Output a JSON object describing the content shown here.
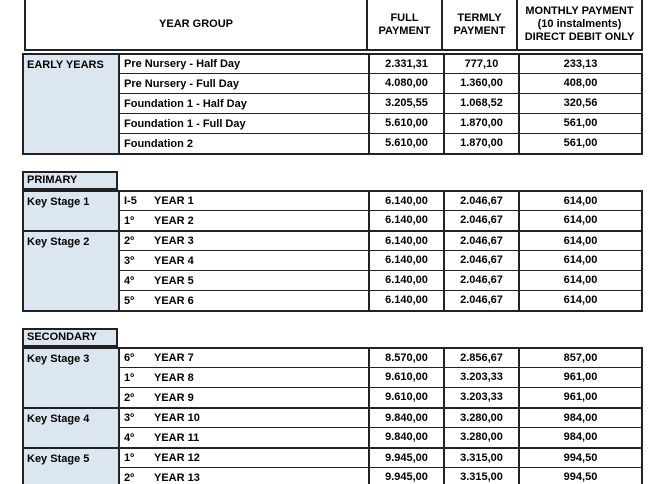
{
  "colors": {
    "category_fill": "#dce6f1",
    "border": "#222222",
    "background": "#ffffff"
  },
  "table": {
    "header": {
      "year_group": "YEAR GROUP",
      "full": "FULL\nPAYMENT",
      "termly": "TERMLY\nPAYMENT",
      "monthly": "MONTHLY PAYMENT\n(10 instalments)\nDIRECT DEBIT ONLY"
    },
    "sections": [
      {
        "title": "",
        "groups": [
          {
            "category": "EARLY YEARS",
            "rows": [
              {
                "prefix": "",
                "label": "Pre Nursery - Half Day",
                "full": "2.331,31",
                "termly": "777,10",
                "monthly": "233,13"
              },
              {
                "prefix": "",
                "label": "Pre Nursery - Full Day",
                "full": "4.080,00",
                "termly": "1.360,00",
                "monthly": "408,00"
              },
              {
                "prefix": "",
                "label": "Foundation 1 - Half Day",
                "full": "3.205,55",
                "termly": "1.068,52",
                "monthly": "320,56"
              },
              {
                "prefix": "",
                "label": "Foundation 1 - Full Day",
                "full": "5.610,00",
                "termly": "1.870,00",
                "monthly": "561,00"
              },
              {
                "prefix": "",
                "label": "Foundation 2",
                "full": "5.610,00",
                "termly": "1.870,00",
                "monthly": "561,00"
              }
            ]
          }
        ]
      },
      {
        "title": "PRIMARY",
        "groups": [
          {
            "category": "Key Stage 1",
            "rows": [
              {
                "prefix": "I-5",
                "label": "YEAR 1",
                "full": "6.140,00",
                "termly": "2.046,67",
                "monthly": "614,00"
              },
              {
                "prefix": "1º",
                "label": "YEAR 2",
                "full": "6.140,00",
                "termly": "2.046,67",
                "monthly": "614,00"
              }
            ]
          },
          {
            "category": "Key Stage 2",
            "rows": [
              {
                "prefix": "2º",
                "label": "YEAR 3",
                "full": "6.140,00",
                "termly": "2.046,67",
                "monthly": "614,00"
              },
              {
                "prefix": "3º",
                "label": "YEAR 4",
                "full": "6.140,00",
                "termly": "2.046,67",
                "monthly": "614,00"
              },
              {
                "prefix": "4º",
                "label": "YEAR 5",
                "full": "6.140,00",
                "termly": "2.046,67",
                "monthly": "614,00"
              },
              {
                "prefix": "5º",
                "label": "YEAR 6",
                "full": "6.140,00",
                "termly": "2.046,67",
                "monthly": "614,00"
              }
            ]
          }
        ]
      },
      {
        "title": "SECONDARY",
        "groups": [
          {
            "category": "Key Stage 3",
            "rows": [
              {
                "prefix": "6º",
                "label": "YEAR 7",
                "full": "8.570,00",
                "termly": "2.856,67",
                "monthly": "857,00"
              },
              {
                "prefix": "1º",
                "label": "YEAR 8",
                "full": "9.610,00",
                "termly": "3.203,33",
                "monthly": "961,00"
              },
              {
                "prefix": "2º",
                "label": "YEAR 9",
                "full": "9.610,00",
                "termly": "3.203,33",
                "monthly": "961,00"
              }
            ]
          },
          {
            "category": "Key Stage 4",
            "rows": [
              {
                "prefix": "3º",
                "label": "YEAR 10",
                "full": "9.840,00",
                "termly": "3.280,00",
                "monthly": "984,00"
              },
              {
                "prefix": "4º",
                "label": "YEAR 11",
                "full": "9.840,00",
                "termly": "3.280,00",
                "monthly": "984,00"
              }
            ]
          },
          {
            "category": "Key Stage 5",
            "rows": [
              {
                "prefix": "1º",
                "label": "YEAR 12",
                "full": "9.945,00",
                "termly": "3.315,00",
                "monthly": "994,50"
              },
              {
                "prefix": "2º",
                "label": "YEAR 13",
                "full": "9.945,00",
                "termly": "3.315,00",
                "monthly": "994,50"
              }
            ]
          }
        ]
      }
    ]
  }
}
